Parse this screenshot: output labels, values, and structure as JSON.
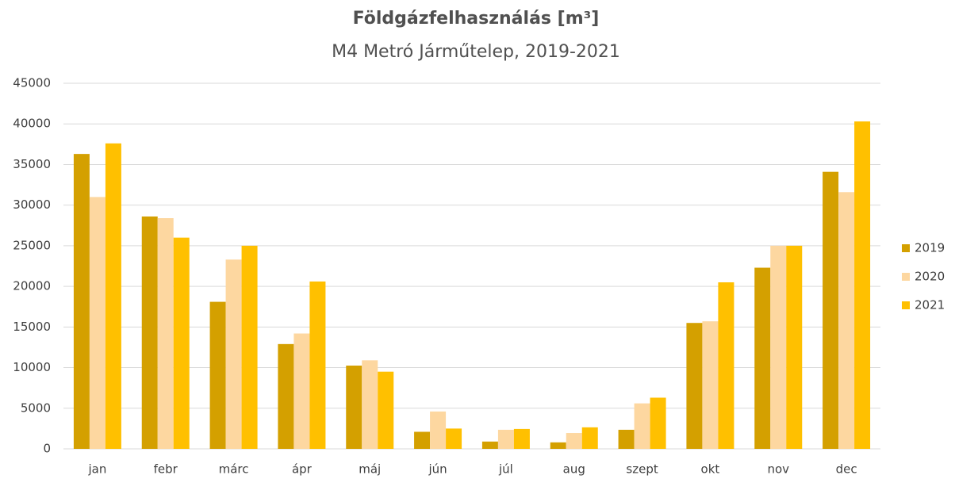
{
  "chart_data": {
    "type": "bar",
    "title": "Földgázfelhasználás [m³]",
    "subtitle": "M4 Metró Járműtelep, 2019-2021",
    "categories": [
      "jan",
      "febr",
      "márc",
      "ápr",
      "máj",
      "jún",
      "júl",
      "aug",
      "szept",
      "okt",
      "nov",
      "dec"
    ],
    "series": [
      {
        "name": "2019",
        "color": "#d4a000",
        "values": [
          36300,
          28600,
          18100,
          12900,
          10250,
          2100,
          900,
          800,
          2350,
          15500,
          22300,
          34100
        ]
      },
      {
        "name": "2020",
        "color": "#fdd7a0",
        "values": [
          31000,
          28400,
          23300,
          14200,
          10900,
          4600,
          2350,
          1950,
          5600,
          15700,
          25000,
          31600
        ]
      },
      {
        "name": "2021",
        "color": "#ffc000",
        "values": [
          37600,
          26000,
          25000,
          20600,
          9500,
          2500,
          2450,
          2650,
          6300,
          20500,
          25000,
          40300
        ]
      }
    ],
    "ylim": [
      0,
      45000
    ],
    "yticks": [
      0,
      5000,
      10000,
      15000,
      20000,
      25000,
      30000,
      35000,
      40000,
      45000
    ],
    "grid": true,
    "legend": "right"
  }
}
